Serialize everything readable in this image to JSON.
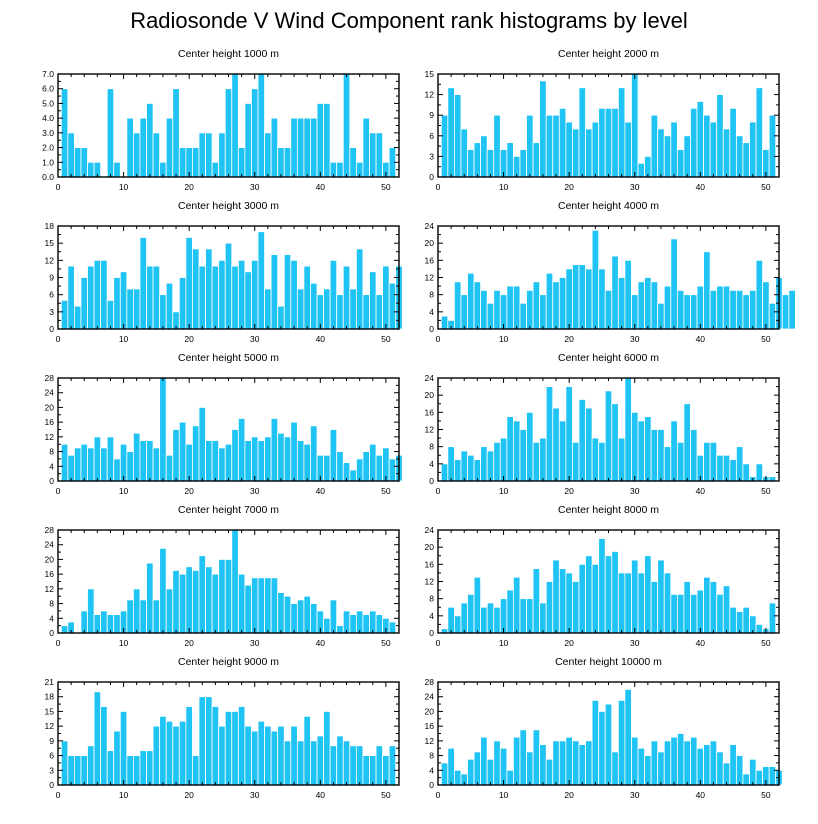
{
  "title": "Radiosonde V Wind Component rank histograms by level",
  "chart_data": [
    {
      "type": "bar",
      "title": "Center height 1000 m",
      "xlim": [
        0,
        52
      ],
      "ylim": [
        0,
        7
      ],
      "xticks": [
        "0",
        "10",
        "20",
        "30",
        "40",
        "50"
      ],
      "yticks": [
        "0.0",
        "1.0",
        "2.0",
        "3.0",
        "4.0",
        "5.0",
        "6.0",
        "7.0"
      ],
      "values": [
        6,
        3,
        2,
        2,
        1,
        1,
        0,
        6,
        1,
        0,
        4,
        3,
        4,
        5,
        3,
        1,
        4,
        6,
        2,
        2,
        2,
        3,
        3,
        1,
        3,
        6,
        7,
        2,
        5,
        6,
        7,
        3,
        4,
        2,
        2,
        4,
        4,
        4,
        4,
        5,
        5,
        1,
        1,
        7,
        2,
        1,
        4,
        3,
        3,
        1,
        2
      ]
    },
    {
      "type": "bar",
      "title": "Center height 2000 m",
      "xlim": [
        0,
        52
      ],
      "ylim": [
        0,
        15
      ],
      "xticks": [
        "0",
        "10",
        "20",
        "30",
        "40",
        "50"
      ],
      "yticks": [
        "0",
        "3",
        "6",
        "9",
        "12",
        "15"
      ],
      "values": [
        9,
        13,
        12,
        7,
        4,
        5,
        6,
        4,
        9,
        4,
        5,
        3,
        4,
        9,
        5,
        14,
        9,
        9,
        10,
        8,
        7,
        13,
        7,
        8,
        10,
        10,
        10,
        13,
        8,
        15,
        2,
        3,
        9,
        7,
        6,
        8,
        4,
        6,
        10,
        11,
        9,
        8,
        12,
        7,
        10,
        6,
        5,
        8,
        13,
        4,
        9
      ]
    },
    {
      "type": "bar",
      "title": "Center height 3000 m",
      "xlim": [
        0,
        52
      ],
      "ylim": [
        0,
        18
      ],
      "xticks": [
        "0",
        "10",
        "20",
        "30",
        "40",
        "50"
      ],
      "yticks": [
        "0",
        "3",
        "6",
        "9",
        "12",
        "15",
        "18"
      ],
      "values": [
        5,
        11,
        4,
        9,
        11,
        12,
        12,
        5,
        9,
        10,
        7,
        7,
        16,
        11,
        11,
        6,
        8,
        3,
        9,
        16,
        14,
        11,
        14,
        11,
        12,
        15,
        11,
        12,
        10,
        12,
        17,
        7,
        13,
        4,
        13,
        12,
        7,
        11,
        8,
        6,
        7,
        12,
        6,
        11,
        7,
        14,
        6,
        10,
        6,
        11,
        8,
        11
      ]
    },
    {
      "type": "bar",
      "title": "Center height 4000 m",
      "xlim": [
        0,
        52
      ],
      "ylim": [
        0,
        24
      ],
      "xticks": [
        "0",
        "10",
        "20",
        "30",
        "40",
        "50"
      ],
      "yticks": [
        "0",
        "4",
        "8",
        "12",
        "16",
        "20",
        "24"
      ],
      "values": [
        3,
        2,
        11,
        8,
        13,
        11,
        9,
        6,
        9,
        8,
        10,
        10,
        6,
        9,
        11,
        8,
        13,
        11,
        12,
        14,
        15,
        15,
        14,
        23,
        14,
        9,
        17,
        12,
        16,
        8,
        11,
        12,
        11,
        6,
        10,
        21,
        9,
        8,
        8,
        10,
        18,
        9,
        10,
        10,
        9,
        9,
        8,
        9,
        16,
        11,
        6,
        12,
        8,
        9
      ]
    },
    {
      "type": "bar",
      "title": "Center height 5000 m",
      "xlim": [
        0,
        52
      ],
      "ylim": [
        0,
        28
      ],
      "xticks": [
        "0",
        "10",
        "20",
        "30",
        "40",
        "50"
      ],
      "yticks": [
        "0",
        "4",
        "8",
        "12",
        "16",
        "20",
        "24",
        "28"
      ],
      "values": [
        10,
        7,
        9,
        10,
        9,
        12,
        9,
        12,
        6,
        10,
        8,
        13,
        11,
        11,
        9,
        28,
        7,
        14,
        16,
        10,
        15,
        20,
        11,
        11,
        9,
        10,
        14,
        17,
        11,
        12,
        11,
        12,
        17,
        13,
        12,
        16,
        11,
        10,
        15,
        7,
        7,
        14,
        8,
        5,
        3,
        6,
        8,
        10,
        7,
        9,
        6,
        7
      ]
    },
    {
      "type": "bar",
      "title": "Center height 6000 m",
      "xlim": [
        0,
        52
      ],
      "ylim": [
        0,
        24
      ],
      "xticks": [
        "0",
        "10",
        "20",
        "30",
        "40",
        "50"
      ],
      "yticks": [
        "0",
        "4",
        "8",
        "12",
        "16",
        "20",
        "24"
      ],
      "values": [
        4,
        8,
        5,
        7,
        6,
        5,
        8,
        7,
        9,
        10,
        15,
        14,
        12,
        16,
        9,
        10,
        22,
        17,
        14,
        22,
        9,
        19,
        17,
        10,
        9,
        21,
        18,
        10,
        24,
        16,
        14,
        15,
        12,
        12,
        8,
        14,
        9,
        18,
        12,
        6,
        9,
        9,
        6,
        6,
        5,
        8,
        4,
        1,
        4,
        1,
        1
      ]
    },
    {
      "type": "bar",
      "title": "Center height 7000 m",
      "xlim": [
        0,
        52
      ],
      "ylim": [
        0,
        28
      ],
      "xticks": [
        "0",
        "10",
        "20",
        "30",
        "40",
        "50"
      ],
      "yticks": [
        "0",
        "4",
        "8",
        "12",
        "16",
        "20",
        "24",
        "28"
      ],
      "values": [
        2,
        3,
        0,
        6,
        12,
        5,
        6,
        5,
        5,
        6,
        9,
        12,
        9,
        19,
        9,
        23,
        12,
        17,
        16,
        18,
        17,
        21,
        18,
        16,
        20,
        20,
        28,
        16,
        13,
        15,
        15,
        15,
        15,
        11,
        10,
        8,
        9,
        10,
        8,
        6,
        4,
        9,
        2,
        6,
        5,
        6,
        5,
        6,
        5,
        4,
        3
      ]
    },
    {
      "type": "bar",
      "title": "Center height 8000 m",
      "xlim": [
        0,
        52
      ],
      "ylim": [
        0,
        24
      ],
      "xticks": [
        "0",
        "10",
        "20",
        "30",
        "40",
        "50"
      ],
      "yticks": [
        "0",
        "4",
        "8",
        "12",
        "16",
        "20",
        "24"
      ],
      "values": [
        1,
        6,
        4,
        7,
        9,
        13,
        6,
        7,
        6,
        8,
        10,
        13,
        8,
        8,
        15,
        7,
        12,
        17,
        15,
        14,
        12,
        16,
        18,
        16,
        22,
        18,
        19,
        14,
        14,
        17,
        14,
        18,
        12,
        17,
        14,
        9,
        9,
        12,
        9,
        10,
        13,
        12,
        9,
        11,
        6,
        5,
        6,
        4,
        2,
        1,
        7
      ]
    },
    {
      "type": "bar",
      "title": "Center height 9000 m",
      "xlim": [
        0,
        52
      ],
      "ylim": [
        0,
        21
      ],
      "xticks": [
        "0",
        "10",
        "20",
        "30",
        "40",
        "50"
      ],
      "yticks": [
        "0",
        "3",
        "6",
        "9",
        "12",
        "15",
        "18",
        "21"
      ],
      "values": [
        9,
        6,
        6,
        6,
        8,
        19,
        16,
        7,
        11,
        15,
        6,
        6,
        7,
        7,
        12,
        14,
        13,
        12,
        13,
        16,
        6,
        18,
        18,
        16,
        12,
        15,
        15,
        16,
        12,
        11,
        13,
        12,
        11,
        12,
        9,
        12,
        9,
        14,
        9,
        10,
        15,
        8,
        10,
        9,
        8,
        8,
        6,
        6,
        8,
        6,
        8
      ]
    },
    {
      "type": "bar",
      "title": "Center height 10000 m",
      "xlim": [
        0,
        52
      ],
      "ylim": [
        0,
        28
      ],
      "xticks": [
        "0",
        "10",
        "20",
        "30",
        "40",
        "50"
      ],
      "yticks": [
        "0",
        "4",
        "8",
        "12",
        "16",
        "20",
        "24",
        "28"
      ],
      "values": [
        6,
        10,
        4,
        3,
        7,
        9,
        13,
        7,
        12,
        10,
        4,
        13,
        15,
        9,
        15,
        11,
        7,
        12,
        12,
        13,
        12,
        11,
        12,
        23,
        20,
        22,
        9,
        23,
        26,
        13,
        10,
        8,
        12,
        9,
        12,
        13,
        14,
        12,
        13,
        10,
        11,
        12,
        9,
        6,
        11,
        8,
        3,
        7,
        4,
        5,
        5,
        4
      ]
    }
  ]
}
